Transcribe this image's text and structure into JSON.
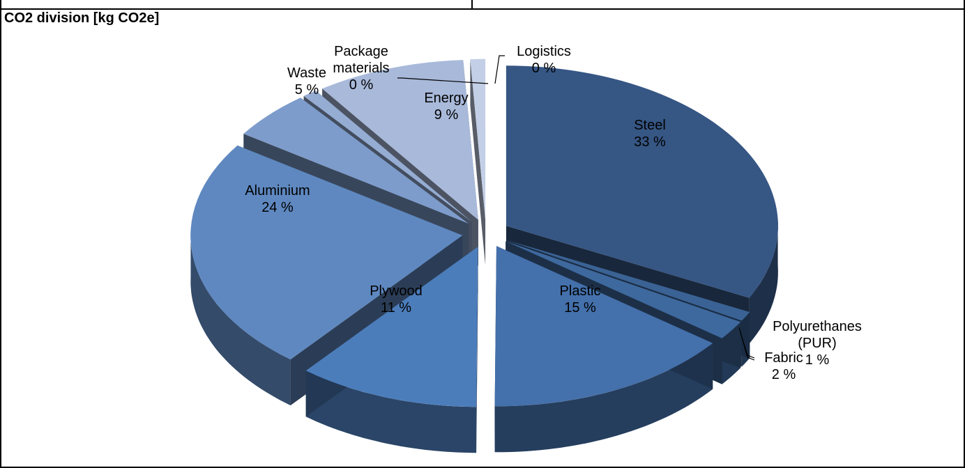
{
  "chart_data": {
    "type": "pie",
    "title": "CO2 division [kg CO2e]",
    "slices": [
      {
        "label": "Steel",
        "value": 33,
        "color": "#365684"
      },
      {
        "label": "Polyurethanes (PUR)",
        "value": 1,
        "color": "#3a6294"
      },
      {
        "label": "Fabric",
        "value": 2,
        "color": "#3e699e"
      },
      {
        "label": "Plastic",
        "value": 15,
        "color": "#4470ab"
      },
      {
        "label": "Plywood",
        "value": 11,
        "color": "#4c7dbb"
      },
      {
        "label": "Aluminium",
        "value": 24,
        "color": "#5f88c0"
      },
      {
        "label": "Waste",
        "value": 5,
        "color": "#7d9ccb"
      },
      {
        "label": "Package materials",
        "value": 0,
        "color": "#95acd3"
      },
      {
        "label": "Energy",
        "value": 9,
        "color": "#a8b9da"
      },
      {
        "label": "Logistics",
        "value": 0,
        "color": "#c3cfe6"
      }
    ],
    "value_suffix": " %"
  }
}
